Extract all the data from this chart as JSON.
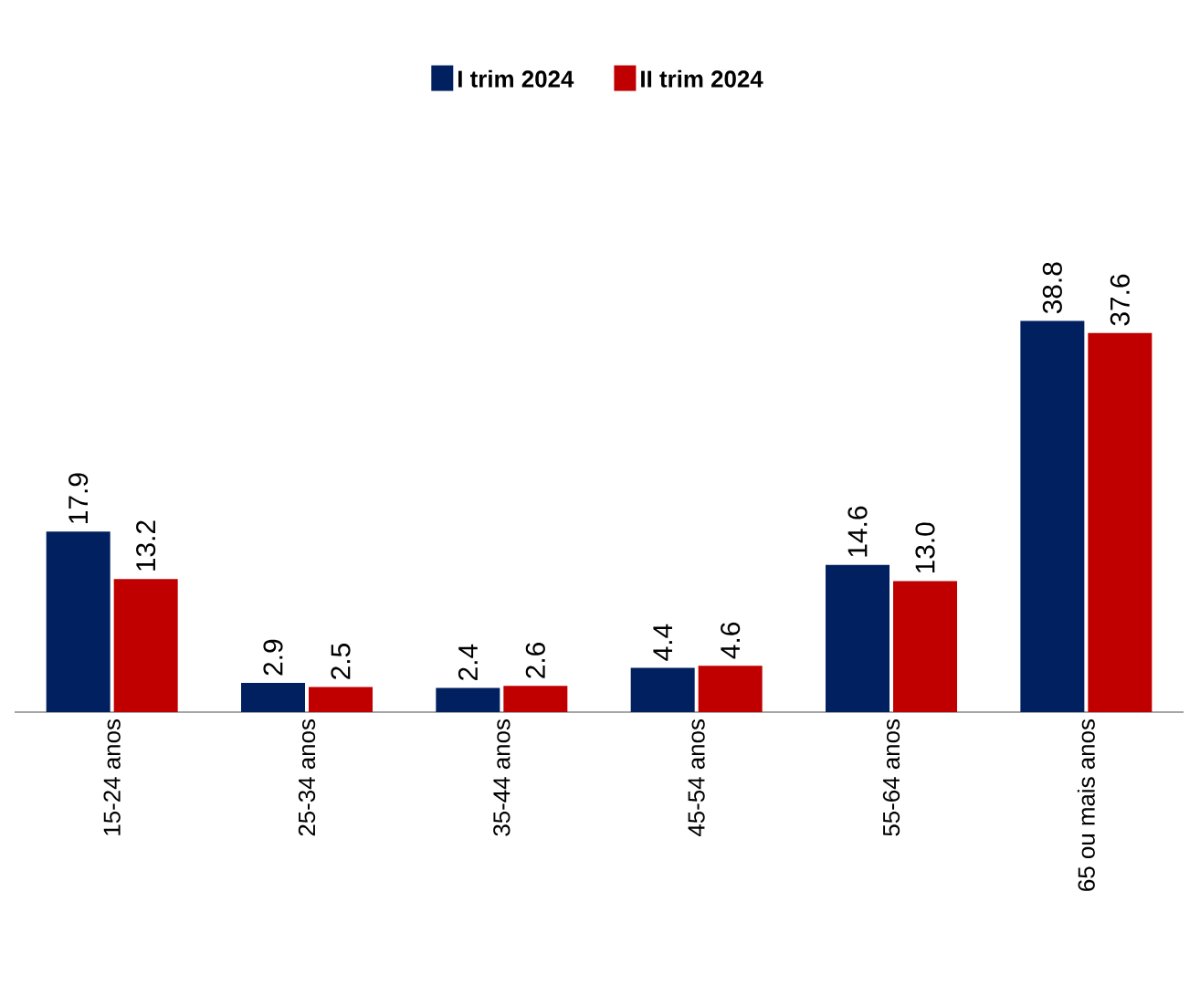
{
  "chart_data": {
    "type": "bar",
    "categories": [
      "15-24 anos",
      "25-34 anos",
      "35-44 anos",
      "45-54 anos",
      "55-64 anos",
      "65 ou mais anos"
    ],
    "series": [
      {
        "name": "I trim 2024",
        "color": "#002060",
        "values": [
          17.9,
          2.9,
          2.4,
          4.4,
          14.6,
          38.8
        ],
        "value_labels": [
          "17.9",
          "2.9",
          "2.4",
          "4.4",
          "14.6",
          "38.8"
        ]
      },
      {
        "name": "II trim 2024",
        "color": "#c00000",
        "values": [
          13.2,
          2.5,
          2.6,
          4.6,
          13.0,
          37.6
        ],
        "value_labels": [
          "13.2",
          "2.5",
          "2.6",
          "4.6",
          "13.0",
          "37.6"
        ]
      }
    ],
    "legend": "top",
    "grid": false,
    "tick_labels": "x"
  }
}
